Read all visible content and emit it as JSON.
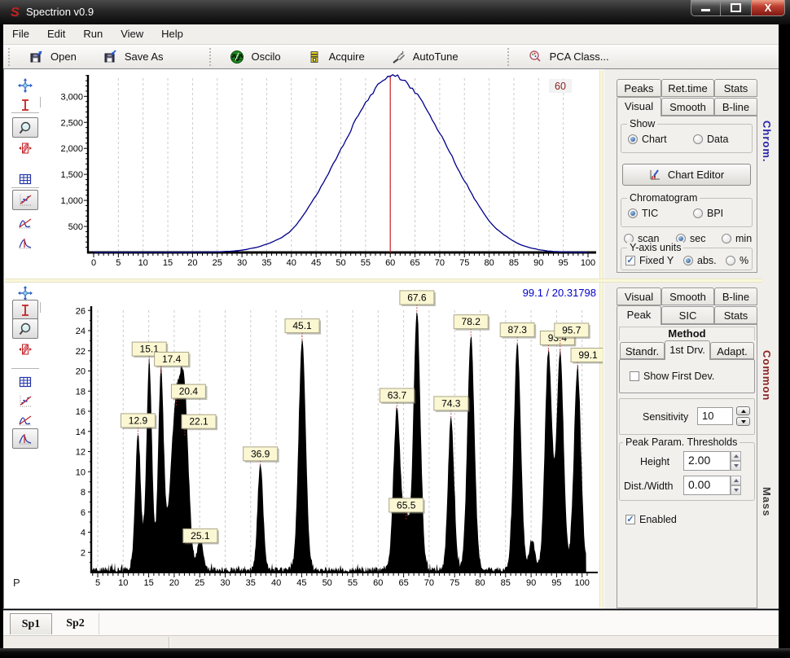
{
  "window": {
    "title": "Spectrion v0.9"
  },
  "menu": {
    "items": [
      "File",
      "Edit",
      "Run",
      "View",
      "Help"
    ]
  },
  "toolbar": {
    "buttons": [
      {
        "icon": "open-icon",
        "label": "Open"
      },
      {
        "icon": "saveas-icon",
        "label": "Save As"
      },
      {
        "icon": "oscilo-icon",
        "label": "Oscilo"
      },
      {
        "icon": "acquire-icon",
        "label": "Acquire"
      },
      {
        "icon": "autotune-icon",
        "label": "AutoTune"
      },
      {
        "icon": "pca-icon",
        "label": "PCA Class..."
      }
    ]
  },
  "chart_tools": [
    "pan-icon",
    "range-icon",
    "zoom-icon",
    "stretch-icon",
    "table-icon",
    "fit-icon",
    "curve-icon",
    "peaks-icon"
  ],
  "side_tabs": [
    {
      "label": "Chrom.",
      "color": "#2626a8"
    },
    {
      "label": "Common",
      "color": "#8b2222"
    },
    {
      "label": "Mass",
      "color": "#3c3c3c"
    }
  ],
  "chrom_panel": {
    "tabs_row1": [
      "Peaks",
      "Ret.time",
      "Stats"
    ],
    "tabs_row2": [
      "Visual",
      "Smooth",
      "B-line"
    ],
    "active_tab": "Visual",
    "show_group": {
      "title": "Show",
      "option1": "Chart",
      "option2": "Data",
      "selected": "Chart"
    },
    "chart_editor": "Chart Editor",
    "chrom_group": {
      "title": "Chromatogram",
      "option1": "TIC",
      "option2": "BPI",
      "selected": "TIC"
    },
    "time_units": {
      "option1": "scan",
      "option2": "sec",
      "option3": "min",
      "selected": "sec"
    },
    "yaxis_group": {
      "title": "Y-axis units",
      "checkbox": "Fixed Y",
      "checked": true,
      "option1": "abs.",
      "option2": "%",
      "selected": "abs."
    }
  },
  "peak_panel": {
    "tabs_row1": [
      "Visual",
      "Smooth",
      "B-line"
    ],
    "tabs_row2": [
      "Peak",
      "SIC",
      "Stats"
    ],
    "active_tab": "Peak",
    "method_title": "Method",
    "method_tabs": [
      "Standr.",
      "1st Drv.",
      "Adapt."
    ],
    "active_method_tab": "1st Drv.",
    "show_first_dev": {
      "label": "Show First Dev.",
      "checked": false
    },
    "sensitivity": {
      "label": "Sensitivity",
      "value": "10"
    },
    "thresholds": {
      "title": "Peak Param. Thresholds",
      "height_label": "Height",
      "height_value": "2.00",
      "dist_label": "Dist./Width",
      "dist_value": "0.00"
    },
    "enabled": {
      "label": "Enabled",
      "checked": true
    }
  },
  "doc_tabs": {
    "tabs": [
      "Sp1",
      "Sp2"
    ],
    "active": "Sp1"
  },
  "bottom_corner_label": "P",
  "chart_data": [
    {
      "type": "line",
      "name": "chromatogram-tic",
      "x": [
        0,
        5,
        10,
        15,
        20,
        25,
        30,
        35,
        40,
        45,
        50,
        55,
        60,
        65,
        70,
        75,
        80,
        85,
        90,
        95,
        100
      ],
      "y": [
        0,
        0,
        0,
        2,
        5,
        12,
        45,
        160,
        430,
        1100,
        1980,
        2870,
        3400,
        3080,
        2300,
        1380,
        610,
        215,
        55,
        10,
        2
      ],
      "series_color": "#00008b",
      "xlim": [
        0,
        101
      ],
      "ylim": [
        0,
        3450
      ],
      "x_ticks": [
        0,
        5,
        10,
        15,
        20,
        25,
        30,
        35,
        40,
        45,
        50,
        55,
        60,
        65,
        70,
        75,
        80,
        85,
        90,
        95,
        100
      ],
      "y_ticks": [
        500,
        1000,
        1500,
        2000,
        2500,
        3000
      ],
      "grid": "vertical-dashed",
      "annotation": {
        "x": 60,
        "label": "60",
        "color": "#8b1a1a",
        "line_color": "#cc2222"
      }
    },
    {
      "type": "peaks",
      "name": "mass-spectrum",
      "cursor_readout": "99.1 / 20.31798",
      "xlim": [
        0.5,
        101
      ],
      "ylim": [
        0,
        27.2
      ],
      "x_ticks": [
        5,
        10,
        15,
        20,
        25,
        30,
        35,
        40,
        45,
        50,
        55,
        60,
        65,
        70,
        75,
        80,
        85,
        90,
        95,
        100
      ],
      "y_ticks": [
        2,
        4,
        6,
        8,
        10,
        12,
        14,
        16,
        18,
        20,
        22,
        24,
        26
      ],
      "noise_level": 0.5,
      "label_bg": "#fbf7d3",
      "peaks": [
        {
          "x": 12.9,
          "h": 13.5,
          "label": "12.9"
        },
        {
          "x": 15.1,
          "h": 20.6,
          "label": "15.1"
        },
        {
          "x": 17.4,
          "h": 19.6,
          "label": "17.4",
          "dx": 13
        },
        {
          "x": 20.4,
          "h": 16.4,
          "label": "20.4",
          "dx": 15,
          "sigma": 1.1
        },
        {
          "x": 22.1,
          "h": 13.4,
          "label": "22.1",
          "dx": 17,
          "sigma": 0.8
        },
        {
          "x": 25.1,
          "h": 3.2,
          "label": "25.1",
          "dy": 14
        },
        {
          "x": 36.9,
          "h": 10.6,
          "label": "36.9",
          "dy": 5
        },
        {
          "x": 45.1,
          "h": 22.9,
          "label": "45.1",
          "sigma": 0.7
        },
        {
          "x": 63.7,
          "h": 16.0,
          "label": "63.7",
          "sigma": 0.7
        },
        {
          "x": 65.5,
          "h": 5.1,
          "label": "65.5"
        },
        {
          "x": 67.6,
          "h": 25.7,
          "label": "67.6",
          "sigma": 0.7
        },
        {
          "x": 74.3,
          "h": 15.2,
          "label": "74.3",
          "sigma": 0.6
        },
        {
          "x": 78.2,
          "h": 23.3,
          "label": "78.2",
          "sigma": 0.7
        },
        {
          "x": 87.3,
          "h": 22.5,
          "label": "87.3",
          "sigma": 0.7
        },
        {
          "x": 90.2,
          "h": 3.0
        },
        {
          "x": 93.4,
          "h": 21.7,
          "label": "93.4",
          "dx": 11,
          "sigma": 0.7
        },
        {
          "x": 95.7,
          "h": 21.5,
          "label": "95.7",
          "dx": 14,
          "dy": -12,
          "sigma": 0.7
        },
        {
          "x": 99.1,
          "h": 20.0,
          "label": "99.1",
          "dx": 13,
          "sigma": 0.7
        }
      ]
    }
  ]
}
